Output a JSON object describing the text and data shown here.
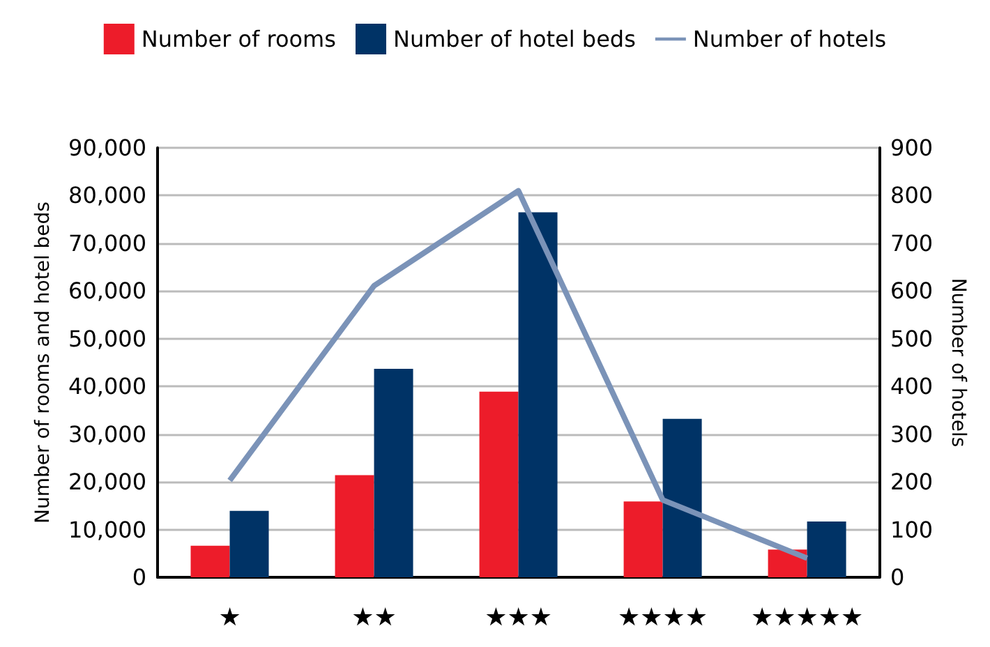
{
  "chart_data": {
    "type": "bar",
    "categories": [
      "★",
      "★★",
      "★★★",
      "★★★★",
      "★★★★★"
    ],
    "series": [
      {
        "name": "Number of rooms",
        "color": "#ed1c2a",
        "values": [
          6600,
          21400,
          38900,
          15900,
          5800
        ]
      },
      {
        "name": "Number of hotel beds",
        "color": "#003366",
        "values": [
          13900,
          43700,
          76500,
          33200,
          11700
        ]
      },
      {
        "name": "Number of hotels",
        "type": "line",
        "axis": "y2",
        "color": "#7b93b8",
        "values": [
          203,
          611,
          810,
          162,
          40
        ]
      }
    ],
    "ylabel": "Number of rooms and hotel beds",
    "y2label": "Number of hotels",
    "ylim": [
      0,
      90000
    ],
    "yticks": [
      0,
      {
        "value": 10000,
        "label": "10,000"
      },
      {
        "value": 20000,
        "label": "20,000"
      },
      {
        "value": 30000,
        "label": "30,000"
      },
      {
        "value": 40000,
        "label": "40,000"
      },
      {
        "value": 50000,
        "label": "50,000"
      },
      {
        "value": 60000,
        "label": "60,000"
      },
      {
        "value": 70000,
        "label": "70,000"
      },
      {
        "value": 80000,
        "label": "80,000"
      },
      {
        "value": 90000,
        "label": "90,000"
      }
    ],
    "y2lim": [
      0,
      900
    ],
    "y2ticks": [
      0,
      100,
      200,
      300,
      400,
      500,
      600,
      700,
      800,
      900
    ],
    "grid": "y",
    "legend": "top",
    "marker": "none"
  }
}
